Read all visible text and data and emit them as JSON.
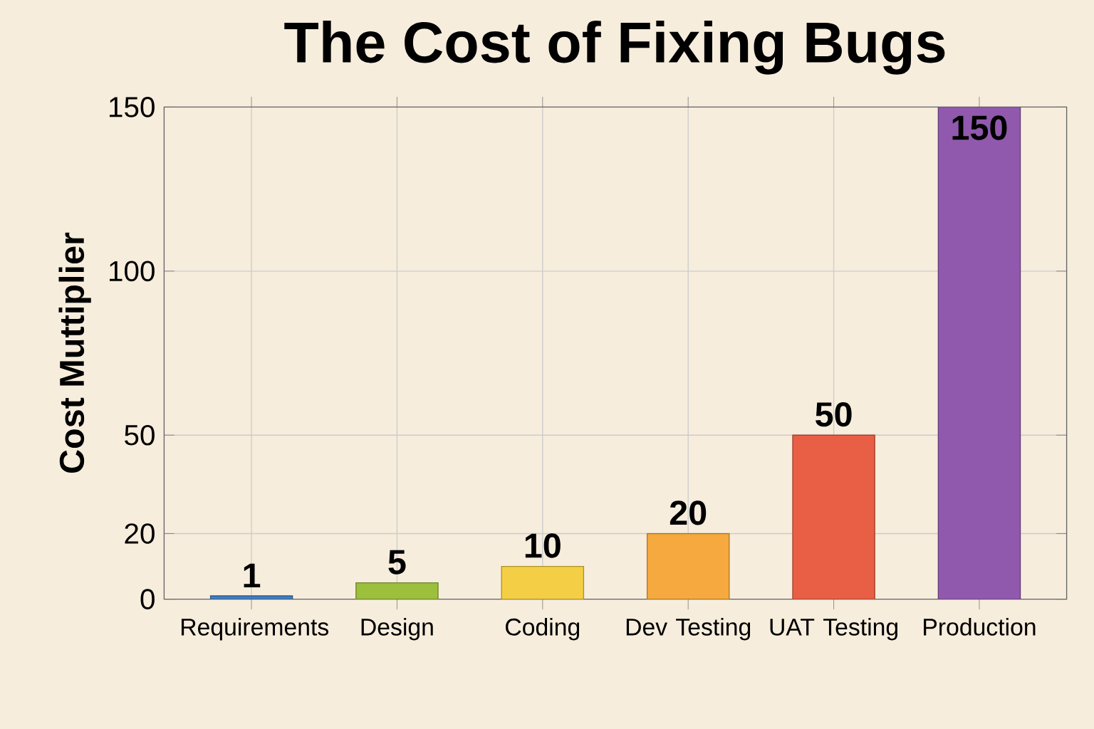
{
  "chart_data": {
    "type": "bar",
    "title": "The Cost of Fixing Bugs",
    "ylabel": "Cost Muttiplier",
    "categories": [
      "Requirements",
      "Design",
      "Coding",
      "Dev Testing",
      "UAT Testing",
      "Production"
    ],
    "values": [
      1,
      5,
      10,
      20,
      50,
      150
    ],
    "colors": [
      "#3f7fc4",
      "#9cbf3c",
      "#f4cf45",
      "#f5a93e",
      "#e95f45",
      "#9159ae"
    ],
    "ylim": [
      0,
      150
    ],
    "yticks": [
      0,
      20,
      50,
      100,
      150
    ],
    "grid": true,
    "data_labels": true
  }
}
